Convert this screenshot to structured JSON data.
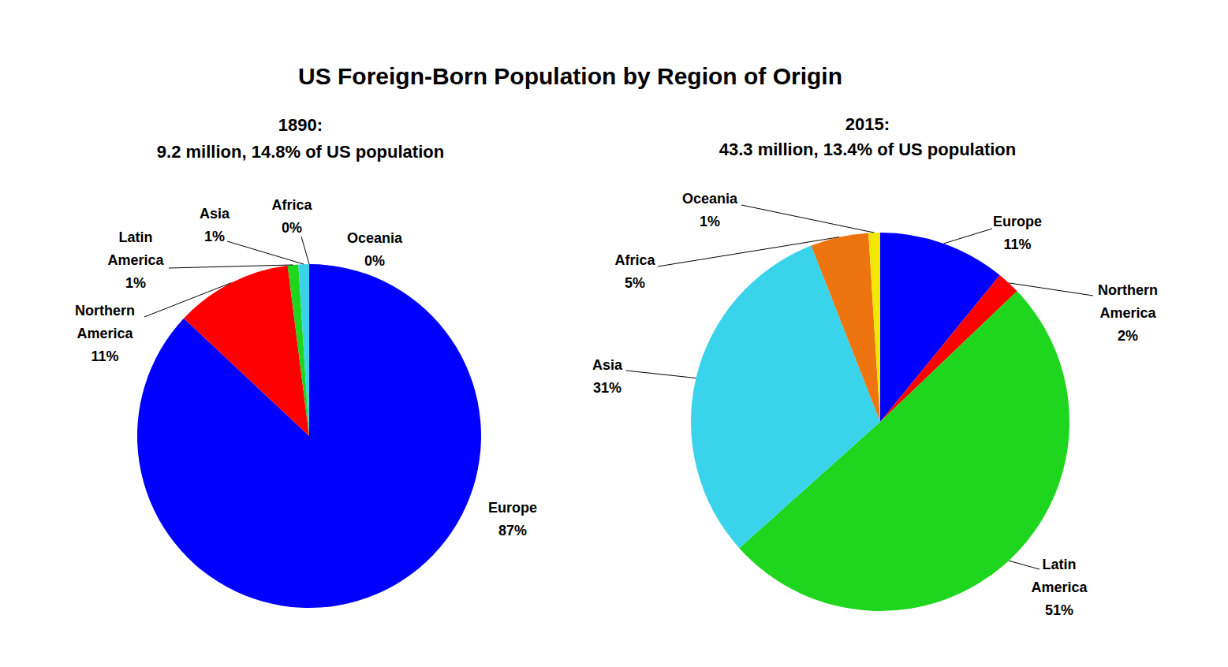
{
  "title": "US Foreign-Born Population by Region of Origin",
  "chart_data": [
    {
      "type": "pie",
      "title": "1890:",
      "subtitle": "9.2 million, 14.8% of US population",
      "categories": [
        "Europe",
        "Northern America",
        "Latin America",
        "Asia",
        "Africa",
        "Oceania"
      ],
      "values": [
        87,
        11,
        1,
        1,
        0,
        0
      ],
      "value_labels": [
        "87%",
        "11%",
        "1%",
        "1%",
        "0%",
        "0%"
      ],
      "colors": [
        "#0000FF",
        "#FF0000",
        "#1ED61E",
        "#3AD3EC",
        "#EE7410",
        "#F5E800"
      ],
      "data_labels": true
    },
    {
      "type": "pie",
      "title": "2015:",
      "subtitle": "43.3 million, 13.4% of US population",
      "categories": [
        "Europe",
        "Northern America",
        "Latin America",
        "Asia",
        "Africa",
        "Oceania"
      ],
      "values": [
        11,
        2,
        51,
        31,
        5,
        1
      ],
      "value_labels": [
        "11%",
        "2%",
        "51%",
        "31%",
        "5%",
        "1%"
      ],
      "colors": [
        "#0000FF",
        "#FF0000",
        "#1ED61E",
        "#3AD3EC",
        "#EE7410",
        "#F5E800"
      ],
      "data_labels": true
    }
  ]
}
